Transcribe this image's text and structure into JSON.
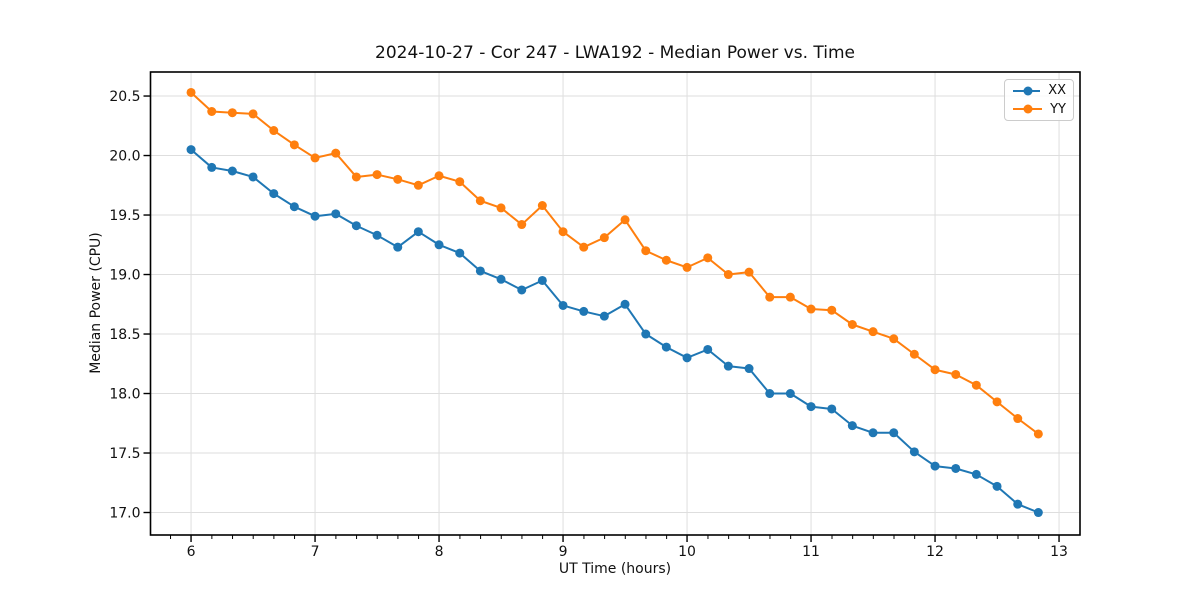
{
  "chart_data": {
    "type": "line",
    "title": "2024-10-27 - Cor 247 - LWA192 - Median Power vs. Time",
    "xlabel": "UT Time (hours)",
    "ylabel": "Median Power (CPU)",
    "xlim": [
      5.673,
      13.169
    ],
    "ylim": [
      16.811,
      20.702
    ],
    "xticks": [
      6,
      7,
      8,
      9,
      10,
      11,
      12,
      13
    ],
    "yticks": [
      17.0,
      17.5,
      18.0,
      18.5,
      19.0,
      19.5,
      20.0,
      20.5
    ],
    "minor_xtick_step": 0.1667,
    "grid": true,
    "grid_color": "#dedede",
    "legend_position": "upper right",
    "x": [
      6.0,
      6.167,
      6.333,
      6.5,
      6.667,
      6.833,
      7.0,
      7.167,
      7.333,
      7.5,
      7.667,
      7.833,
      8.0,
      8.167,
      8.333,
      8.5,
      8.667,
      8.833,
      9.0,
      9.167,
      9.333,
      9.5,
      9.667,
      9.833,
      10.0,
      10.167,
      10.333,
      10.5,
      10.667,
      10.833,
      11.0,
      11.167,
      11.333,
      11.5,
      11.667,
      11.833,
      12.0,
      12.167,
      12.333,
      12.5,
      12.667,
      12.833
    ],
    "series": [
      {
        "name": "XX",
        "color": "#1f77b4",
        "values": [
          20.05,
          19.9,
          19.87,
          19.82,
          19.68,
          19.57,
          19.49,
          19.51,
          19.41,
          19.33,
          19.23,
          19.36,
          19.25,
          19.18,
          19.03,
          18.96,
          18.87,
          18.95,
          18.74,
          18.69,
          18.65,
          18.75,
          18.5,
          18.39,
          18.3,
          18.37,
          18.23,
          18.21,
          18.0,
          18.0,
          17.89,
          17.87,
          17.73,
          17.67,
          17.67,
          17.51,
          17.39,
          17.37,
          17.32,
          17.22,
          17.07,
          17.0
        ]
      },
      {
        "name": "YY",
        "color": "#ff7f0e",
        "values": [
          20.53,
          20.37,
          20.36,
          20.35,
          20.21,
          20.09,
          19.98,
          20.02,
          19.82,
          19.84,
          19.8,
          19.75,
          19.83,
          19.78,
          19.62,
          19.56,
          19.42,
          19.58,
          19.36,
          19.23,
          19.31,
          19.46,
          19.2,
          19.12,
          19.06,
          19.14,
          19.0,
          19.02,
          18.81,
          18.81,
          18.71,
          18.7,
          18.58,
          18.52,
          18.46,
          18.33,
          18.2,
          18.16,
          18.07,
          17.93,
          17.79,
          17.66
        ]
      }
    ]
  }
}
